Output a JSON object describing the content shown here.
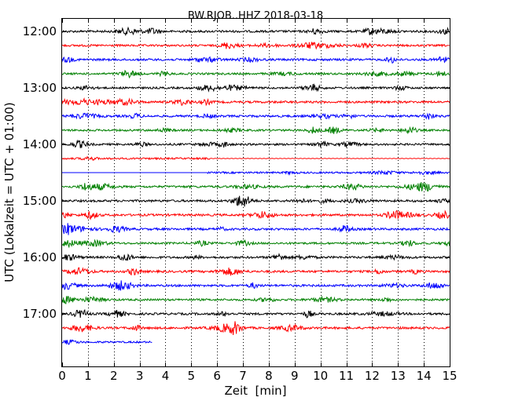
{
  "chart_data": {
    "type": "line",
    "title": "BW.RJOB..HHZ 2018-03-18",
    "xlabel": "Zeit  [min]",
    "ylabel": "UTC (Lokalzeit = UTC + 01:00)",
    "xlim": [
      0,
      15
    ],
    "x_ticks": [
      "0",
      "1",
      "2",
      "3",
      "4",
      "5",
      "6",
      "7",
      "8",
      "9",
      "10",
      "11",
      "12",
      "13",
      "14",
      "15"
    ],
    "y_ticks": [
      "12:00",
      "13:00",
      "14:00",
      "15:00",
      "16:00",
      "17:00"
    ],
    "grid": "vertical dotted lines at each minute",
    "trace_colors": [
      "#000000",
      "#ff0000",
      "#0000ff",
      "#008000"
    ],
    "rows": [
      {
        "start": "12:00",
        "minutes": 15,
        "amplitude": 0.55
      },
      {
        "start": "12:15",
        "minutes": 15,
        "amplitude": 0.5
      },
      {
        "start": "12:30",
        "minutes": 15,
        "amplitude": 0.55
      },
      {
        "start": "12:45",
        "minutes": 15,
        "amplitude": 0.5
      },
      {
        "start": "13:00",
        "minutes": 15,
        "amplitude": 0.5
      },
      {
        "start": "13:15",
        "minutes": 15,
        "amplitude": 0.55
      },
      {
        "start": "13:30",
        "minutes": 15,
        "amplitude": 0.55
      },
      {
        "start": "13:45",
        "minutes": 15,
        "amplitude": 0.5
      },
      {
        "start": "14:00",
        "minutes": 15,
        "amplitude": 0.5
      },
      {
        "start": "14:15",
        "minutes": 15,
        "amplitude": 0.45,
        "quiet_from_minute": 5.7
      },
      {
        "start": "14:30",
        "minutes": 15,
        "amplitude": 0.45,
        "flat_until_minute": 5.6
      },
      {
        "start": "14:45",
        "minutes": 15,
        "amplitude": 0.55
      },
      {
        "start": "15:00",
        "minutes": 15,
        "amplitude": 0.55
      },
      {
        "start": "15:15",
        "minutes": 15,
        "amplitude": 0.55
      },
      {
        "start": "15:30",
        "minutes": 15,
        "amplitude": 0.55
      },
      {
        "start": "15:45",
        "minutes": 15,
        "amplitude": 0.5
      },
      {
        "start": "16:00",
        "minutes": 15,
        "amplitude": 0.55
      },
      {
        "start": "16:15",
        "minutes": 15,
        "amplitude": 0.55
      },
      {
        "start": "16:30",
        "minutes": 15,
        "amplitude": 0.55
      },
      {
        "start": "16:45",
        "minutes": 15,
        "amplitude": 0.5
      },
      {
        "start": "17:00",
        "minutes": 15,
        "amplitude": 0.55
      },
      {
        "start": "17:15",
        "minutes": 15,
        "amplitude": 0.55
      },
      {
        "start": "17:30",
        "minutes": 3.5,
        "amplitude": 0.45
      }
    ]
  }
}
